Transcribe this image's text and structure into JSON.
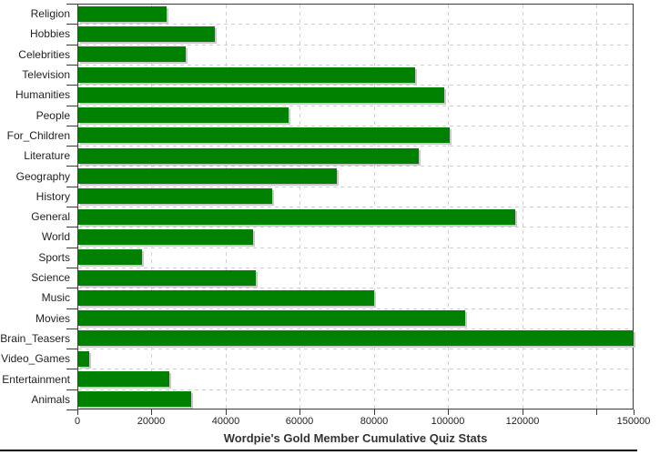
{
  "title": "Wordpie's Gold Member Cumulative Quiz Stats",
  "colors": {
    "bar": "#008000",
    "bar_shadow": "#c9c9c9",
    "grid": "#cfcfcf",
    "plot_border": "#3a3a3a",
    "text": "#1f1f1f",
    "title_text": "#333333",
    "background": "#ffffff"
  },
  "chart_data": {
    "type": "bar",
    "orientation": "horizontal",
    "title": "Wordpie's Gold Member Cumulative Quiz Stats",
    "xlabel": "",
    "ylabel": "",
    "grid": "dashed",
    "legend": "none",
    "xlim": [
      0,
      150000
    ],
    "categories": [
      "Religion",
      "Hobbies",
      "Celebrities",
      "Television",
      "Humanities",
      "People",
      "For_Children",
      "Literature",
      "Geography",
      "History",
      "General",
      "World",
      "Sports",
      "Science",
      "Music",
      "Movies",
      "Brain_Teasers",
      "Video_Games",
      "Entertainment",
      "Animals"
    ],
    "values": [
      24000,
      37000,
      29200,
      91000,
      99000,
      57000,
      100500,
      92000,
      70000,
      52500,
      118000,
      47500,
      17500,
      48000,
      80000,
      104500,
      150000,
      3300,
      24800,
      30700
    ],
    "x_ticks": [
      {
        "value": 0,
        "label": "0"
      },
      {
        "value": 20000,
        "label": "20000"
      },
      {
        "value": 40000,
        "label": "40000"
      },
      {
        "value": 60000,
        "label": "60000"
      },
      {
        "value": 80000,
        "label": "80000"
      },
      {
        "value": 100000,
        "label": "100000"
      },
      {
        "value": 120000,
        "label": "120000"
      },
      {
        "value": 140000,
        "label": ""
      },
      {
        "value": 150000,
        "label": "150000"
      }
    ]
  }
}
